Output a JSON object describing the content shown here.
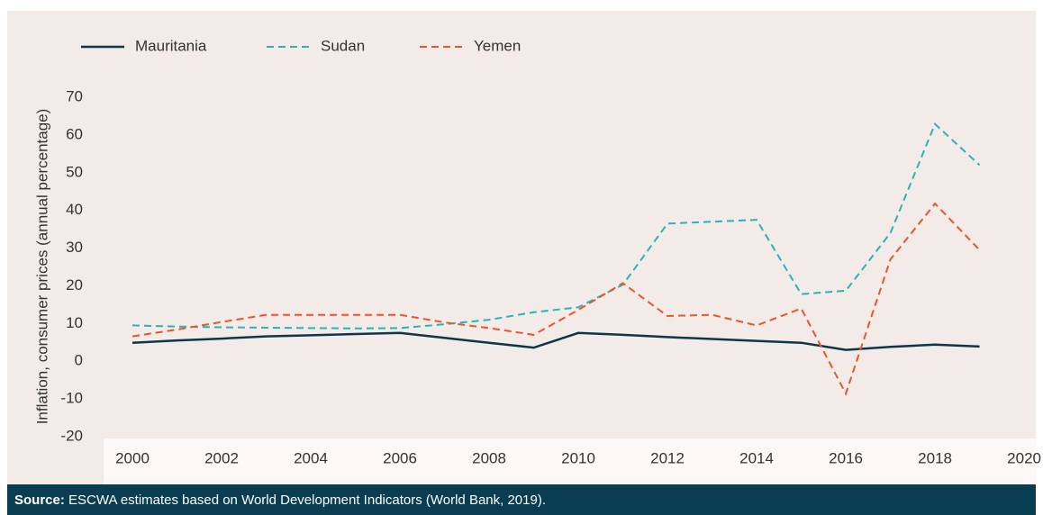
{
  "chart_data": {
    "type": "line",
    "ylabel": "Inflation, consumer prices (annual percentage)",
    "x": [
      2000,
      2001,
      2002,
      2003,
      2004,
      2005,
      2006,
      2007,
      2008,
      2009,
      2010,
      2011,
      2012,
      2013,
      2014,
      2015,
      2016,
      2017,
      2018,
      2019
    ],
    "series": [
      {
        "name": "Mauritania",
        "color": "#0d3548",
        "linestyle": "solid",
        "values": [
          4.9,
          5.5,
          6.0,
          6.6,
          6.9,
          7.2,
          7.5,
          6.2,
          4.9,
          3.6,
          7.5,
          7.0,
          6.4,
          5.9,
          5.4,
          4.9,
          3.0,
          3.8,
          4.4,
          3.9
        ]
      },
      {
        "name": "Sudan",
        "color": "#2ab3b6",
        "linestyle": "dashed",
        "values": [
          9.5,
          9.2,
          9.0,
          8.9,
          8.8,
          8.7,
          8.8,
          9.8,
          11.0,
          13.0,
          14.3,
          20.3,
          36.5,
          37.0,
          37.5,
          17.8,
          18.7,
          34.0,
          62.9,
          52.0
        ]
      },
      {
        "name": "Yemen",
        "color": "#e8562a",
        "linestyle": "dashed",
        "values": [
          6.6,
          8.4,
          10.4,
          12.3,
          12.3,
          12.3,
          12.3,
          10.3,
          8.8,
          7.0,
          13.6,
          20.7,
          12.0,
          12.3,
          9.5,
          14.0,
          -8.6,
          27.0,
          41.8,
          29.5
        ]
      }
    ],
    "xlim": [
      1999.4,
      2020.2
    ],
    "xticks": [
      2000,
      2002,
      2004,
      2006,
      2008,
      2010,
      2012,
      2014,
      2016,
      2018,
      2020
    ],
    "ylim": [
      -20,
      70
    ],
    "yticks": [
      -20,
      -10,
      0,
      10,
      20,
      30,
      40,
      50,
      60,
      70
    ],
    "grid": false,
    "legend": "top",
    "source_label": "Source:",
    "source_text": "ESCWA estimates based on World Development Indicators (World Bank, 2019)."
  }
}
